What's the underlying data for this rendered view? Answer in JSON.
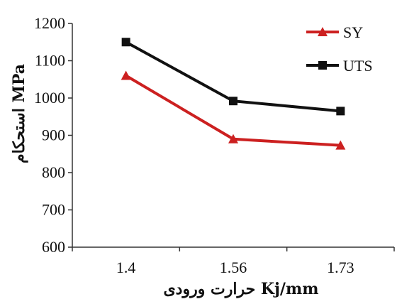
{
  "chart_data": {
    "type": "line",
    "categories": [
      "1.4",
      "1.56",
      "1.73"
    ],
    "series": [
      {
        "name": "SY",
        "values": [
          1060,
          890,
          873
        ],
        "color": "#cc2020",
        "marker": "triangle"
      },
      {
        "name": "UTS",
        "values": [
          1150,
          992,
          965
        ],
        "color": "#111111",
        "marker": "square"
      }
    ],
    "ylim": [
      600,
      1200
    ],
    "yticks": [
      600,
      700,
      800,
      900,
      1000,
      1100,
      1200
    ],
    "ytick_labels": [
      "600",
      "700",
      "800",
      "900",
      "1000",
      "1100",
      "1200"
    ],
    "xlabel": "حرارت ورودی Kj/mm",
    "ylabel": "استحکام MPa",
    "legend": "top-right",
    "grid": false
  }
}
